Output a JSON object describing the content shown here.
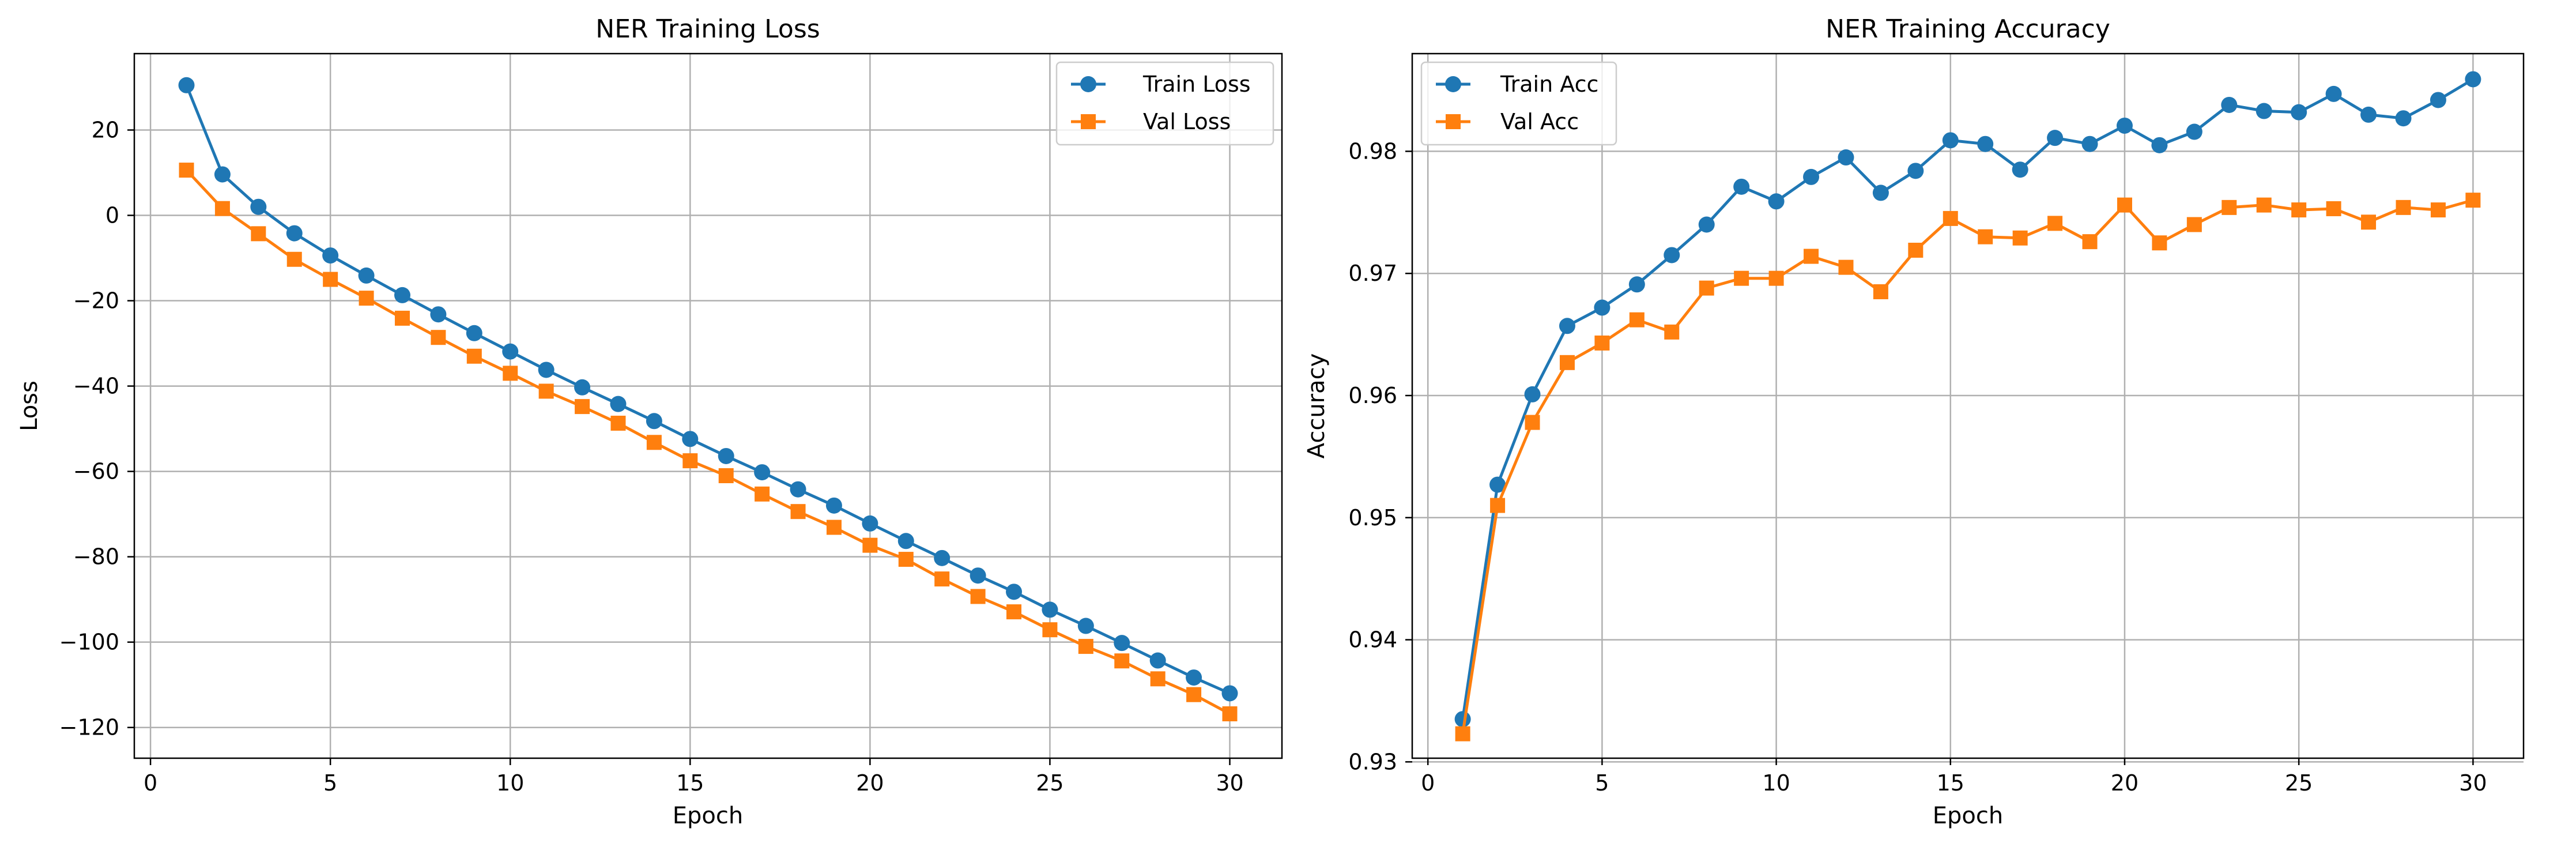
{
  "figure": {
    "background": "#ffffff"
  },
  "chart_data": [
    {
      "type": "line",
      "title": "NER Training Loss",
      "xlabel": "Epoch",
      "ylabel": "Loss",
      "xlim": [
        -0.45,
        31.45
      ],
      "ylim": [
        -127.2,
        37.9
      ],
      "xticks": [
        0,
        5,
        10,
        15,
        20,
        25,
        30
      ],
      "yticks": [
        20,
        0,
        -20,
        -40,
        -60,
        -80,
        -100,
        -120
      ],
      "ytick_labels": [
        "20",
        "0",
        "−20",
        "−40",
        "−60",
        "−80",
        "−100",
        "−120"
      ],
      "grid": true,
      "legend_position": "upper right",
      "x": [
        1,
        2,
        3,
        4,
        5,
        6,
        7,
        8,
        9,
        10,
        11,
        12,
        13,
        14,
        15,
        16,
        17,
        18,
        19,
        20,
        21,
        22,
        23,
        24,
        25,
        26,
        27,
        28,
        29,
        30
      ],
      "series": [
        {
          "name": "Train Loss",
          "color": "#1f77b4",
          "marker": "circle",
          "values": [
            30.5,
            9.6,
            2.0,
            -4.2,
            -9.4,
            -14.1,
            -18.7,
            -23.2,
            -27.6,
            -31.9,
            -36.2,
            -40.3,
            -44.2,
            -48.2,
            -52.4,
            -56.4,
            -60.2,
            -64.2,
            -68.0,
            -72.2,
            -76.3,
            -80.3,
            -84.4,
            -88.2,
            -92.4,
            -96.2,
            -100.2,
            -104.3,
            -108.3,
            -112.0
          ]
        },
        {
          "name": "Val Loss",
          "color": "#ff7f0e",
          "marker": "square",
          "values": [
            10.6,
            1.6,
            -4.3,
            -10.3,
            -15.0,
            -19.4,
            -24.1,
            -28.6,
            -33.0,
            -37.0,
            -41.2,
            -44.8,
            -48.7,
            -53.2,
            -57.5,
            -61.0,
            -65.3,
            -69.4,
            -73.1,
            -77.3,
            -80.6,
            -85.2,
            -89.3,
            -92.9,
            -97.1,
            -101.0,
            -104.4,
            -108.6,
            -112.3,
            -116.8
          ]
        }
      ]
    },
    {
      "type": "line",
      "title": "NER Training Accuracy",
      "xlabel": "Epoch",
      "ylabel": "Accuracy",
      "xlim": [
        -0.45,
        31.45
      ],
      "ylim": [
        0.9303,
        0.988
      ],
      "xticks": [
        0,
        5,
        10,
        15,
        20,
        25,
        30
      ],
      "yticks": [
        0.93,
        0.94,
        0.95,
        0.96,
        0.97,
        0.98
      ],
      "ytick_labels": [
        "0.93",
        "0.94",
        "0.95",
        "0.96",
        "0.97",
        "0.98"
      ],
      "grid": true,
      "legend_position": "upper left",
      "x": [
        1,
        2,
        3,
        4,
        5,
        6,
        7,
        8,
        9,
        10,
        11,
        12,
        13,
        14,
        15,
        16,
        17,
        18,
        19,
        20,
        21,
        22,
        23,
        24,
        25,
        26,
        27,
        28,
        29,
        30
      ],
      "series": [
        {
          "name": "Train Acc",
          "color": "#1f77b4",
          "marker": "circle",
          "values": [
            0.9335,
            0.9527,
            0.9601,
            0.9657,
            0.9672,
            0.9691,
            0.9715,
            0.974,
            0.9771,
            0.9759,
            0.9779,
            0.9795,
            0.9766,
            0.9784,
            0.9809,
            0.9806,
            0.9785,
            0.9811,
            0.9806,
            0.9821,
            0.9805,
            0.9816,
            0.9838,
            0.9833,
            0.9832,
            0.9847,
            0.983,
            0.9827,
            0.9842,
            0.9859
          ]
        },
        {
          "name": "Val Acc",
          "color": "#ff7f0e",
          "marker": "square",
          "values": [
            0.9323,
            0.951,
            0.9578,
            0.9627,
            0.9643,
            0.9662,
            0.9652,
            0.9688,
            0.9696,
            0.9696,
            0.9714,
            0.9705,
            0.9685,
            0.9719,
            0.9745,
            0.973,
            0.9729,
            0.9741,
            0.9726,
            0.9756,
            0.9725,
            0.974,
            0.9754,
            0.9756,
            0.9752,
            0.9753,
            0.9742,
            0.9754,
            0.9752,
            0.976
          ]
        }
      ]
    }
  ]
}
